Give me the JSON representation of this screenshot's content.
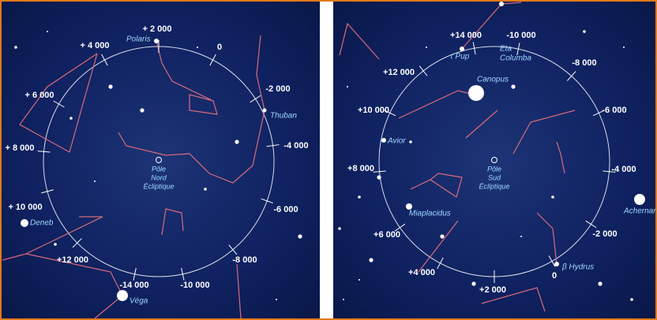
{
  "panels": [
    {
      "ticks": [
        "+ 2 000",
        "0",
        "-2 000",
        "-4 000",
        "-6 000",
        "-8 000",
        "-10 000",
        "-14 000",
        "+12 000",
        "+ 10 000",
        "+ 8 000",
        "+ 6 000",
        "+ 4 000"
      ],
      "stars": [
        "Polaris",
        "Thuban",
        "Deneb",
        "Véga"
      ],
      "pole": [
        "Pôle",
        "Nord",
        "Écliptique"
      ]
    },
    {
      "ticks": [
        "+14 000",
        "-10 000",
        "-8 000",
        "-6 000",
        "-4 000",
        "-2 000",
        "0",
        "+2 000",
        "+4 000",
        "+6 000",
        "+8 000",
        "+10 000",
        "+12 000"
      ],
      "stars": [
        "τ Pup",
        "Eta",
        "Columba",
        "Canopus",
        "Avior",
        "Miaplacidus",
        "Achernar",
        "β Hydrus"
      ],
      "pole": [
        "Pôle",
        "Sud",
        "Écliptique"
      ]
    }
  ]
}
